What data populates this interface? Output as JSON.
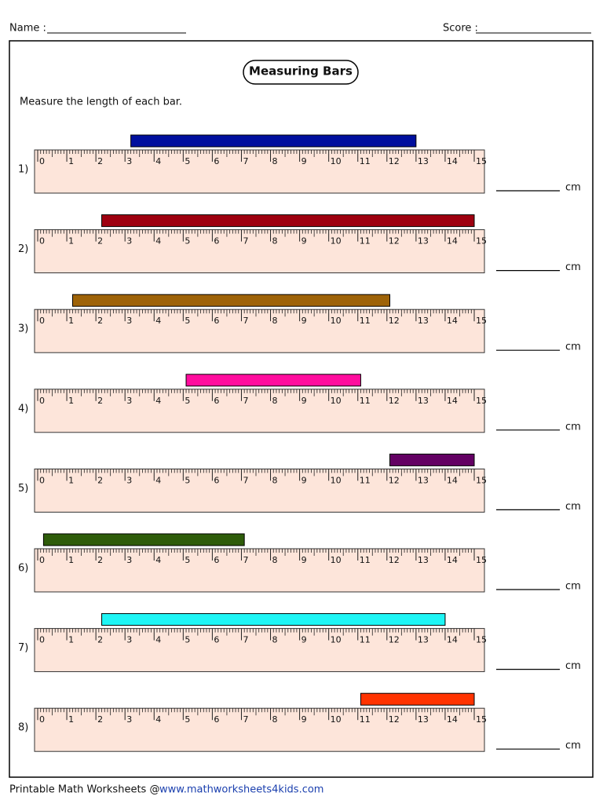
{
  "header": {
    "name_label": "Name :",
    "score_label": "Score :"
  },
  "title": "Measuring Bars",
  "instruction": "Measure the length of each bar.",
  "ruler": {
    "ticks": [
      0,
      1,
      2,
      3,
      4,
      5,
      6,
      7,
      8,
      9,
      10,
      11,
      12,
      13,
      14,
      15
    ],
    "unit": "cm"
  },
  "problems": [
    {
      "number": "1)",
      "start": 3.2,
      "end": 13.0,
      "color": "#000f9e"
    },
    {
      "number": "2)",
      "start": 2.2,
      "end": 15.0,
      "color": "#9e0010"
    },
    {
      "number": "3)",
      "start": 1.2,
      "end": 12.1,
      "color": "#9e6308"
    },
    {
      "number": "4)",
      "start": 5.1,
      "end": 11.1,
      "color": "#ff0d9e"
    },
    {
      "number": "5)",
      "start": 12.1,
      "end": 15.0,
      "color": "#630063"
    },
    {
      "number": "6)",
      "start": 0.2,
      "end": 7.1,
      "color": "#2e5c0a"
    },
    {
      "number": "7)",
      "start": 2.2,
      "end": 14.0,
      "color": "#1ef5f5"
    },
    {
      "number": "8)",
      "start": 11.1,
      "end": 15.0,
      "color": "#ff3300"
    }
  ],
  "footer": {
    "text": "Printable Math Worksheets @ ",
    "link": "www.mathworksheets4kids.com"
  }
}
